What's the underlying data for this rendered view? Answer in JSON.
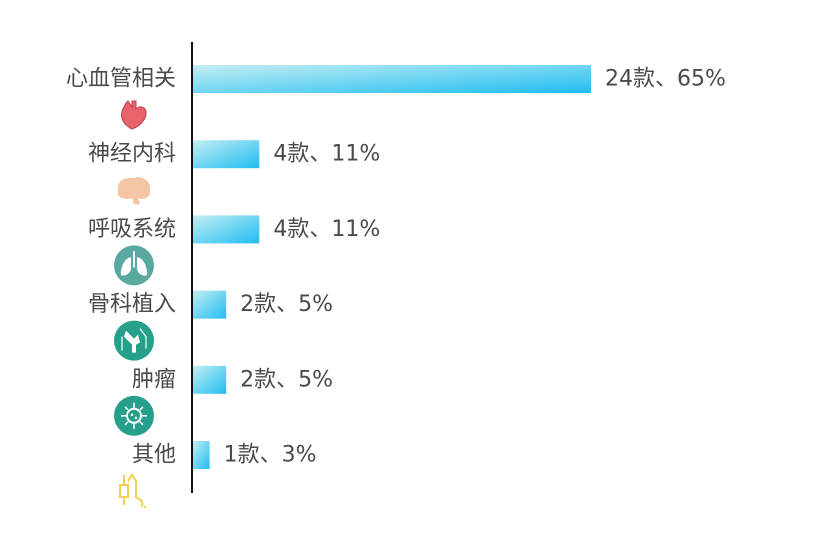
{
  "chart_data": {
    "type": "bar",
    "orientation": "horizontal",
    "categories": [
      "心血管相关",
      "神经内科",
      "呼吸系统",
      "骨科植入",
      "肿瘤",
      "其他"
    ],
    "values": [
      24,
      4,
      4,
      2,
      2,
      1
    ],
    "data_labels": [
      "24款、65%",
      "4款、11%",
      "4款、11%",
      "2款、5%",
      "2款、5%",
      "1款、3%"
    ],
    "icons": [
      "heart-icon",
      "brain-icon",
      "lungs-icon",
      "bone-joint-icon",
      "virus-icon",
      "candlestick-icon"
    ],
    "bar_gradient": [
      "#c4eef2",
      "#1fbdf2"
    ],
    "title": "",
    "xlabel": "",
    "ylabel": "",
    "grid": false,
    "legend": "none"
  }
}
